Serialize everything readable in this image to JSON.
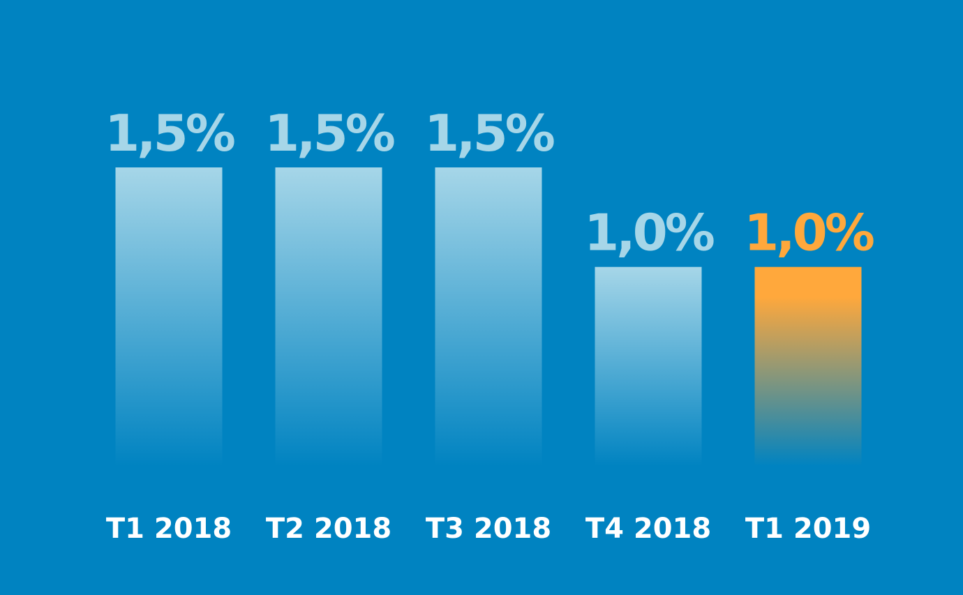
{
  "colors": {
    "background": "#0083c1",
    "bar": "#a6d6e8",
    "highlight": "#ffa83c",
    "value_label": "#a6d6e8",
    "value_label_highlight": "#ffa83c",
    "tick_label": "#ffffff"
  },
  "chart_data": {
    "type": "bar",
    "title": "",
    "xlabel": "",
    "ylabel": "",
    "categories": [
      "T1 2018",
      "T2 2018",
      "T3 2018",
      "T4 2018",
      "T1 2019"
    ],
    "values": [
      1.5,
      1.5,
      1.5,
      1.0,
      1.0
    ],
    "value_labels": [
      "1,5%",
      "1,5%",
      "1,5%",
      "1,0%",
      "1,0%"
    ],
    "highlight_index": 4,
    "unit": "%",
    "ylim": [
      0,
      1.5
    ],
    "grid": false,
    "legend": "none"
  }
}
